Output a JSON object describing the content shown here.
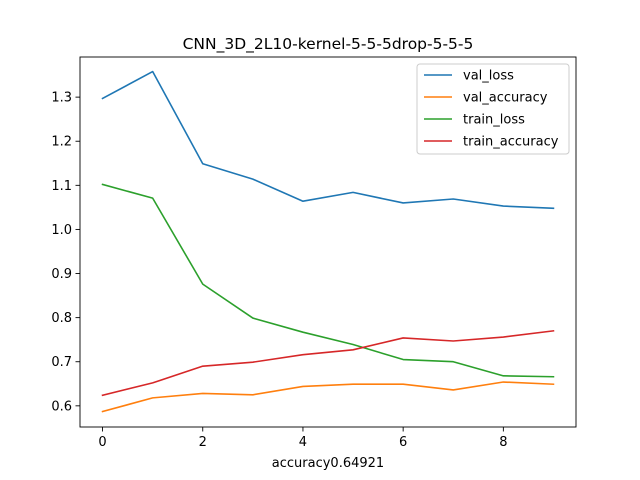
{
  "chart_data": {
    "type": "line",
    "title": "CNN_3D_2L10-kernel-5-5-5drop-5-5-5",
    "xlabel": "accuracy0.64921",
    "ylabel": "",
    "xlim": [
      -0.45,
      9.45
    ],
    "ylim": [
      0.552,
      1.391
    ],
    "x": [
      0,
      1,
      2,
      3,
      4,
      5,
      6,
      7,
      8,
      9
    ],
    "x_ticks": [
      0,
      2,
      4,
      6,
      8
    ],
    "y_ticks": [
      0.6,
      0.7,
      0.8,
      0.9,
      1.0,
      1.1,
      1.2,
      1.3
    ],
    "y_tick_labels": [
      "0.6",
      "0.7",
      "0.8",
      "0.9",
      "1.0",
      "1.1",
      "1.2",
      "1.3"
    ],
    "grid": false,
    "legend_position": "top-right",
    "series": [
      {
        "name": "val_loss",
        "color": "#1f77b4",
        "values": [
          1.297,
          1.358,
          1.149,
          1.114,
          1.064,
          1.084,
          1.06,
          1.069,
          1.053,
          1.048
        ]
      },
      {
        "name": "val_accuracy",
        "color": "#ff7f0e",
        "values": [
          0.587,
          0.618,
          0.628,
          0.625,
          0.644,
          0.649,
          0.649,
          0.636,
          0.654,
          0.649
        ]
      },
      {
        "name": "train_loss",
        "color": "#2ca02c",
        "values": [
          1.102,
          1.071,
          0.876,
          0.799,
          0.767,
          0.739,
          0.705,
          0.7,
          0.668,
          0.666
        ]
      },
      {
        "name": "train_accuracy",
        "color": "#d62728",
        "values": [
          0.624,
          0.652,
          0.69,
          0.699,
          0.716,
          0.727,
          0.754,
          0.747,
          0.756,
          0.77
        ]
      }
    ]
  }
}
